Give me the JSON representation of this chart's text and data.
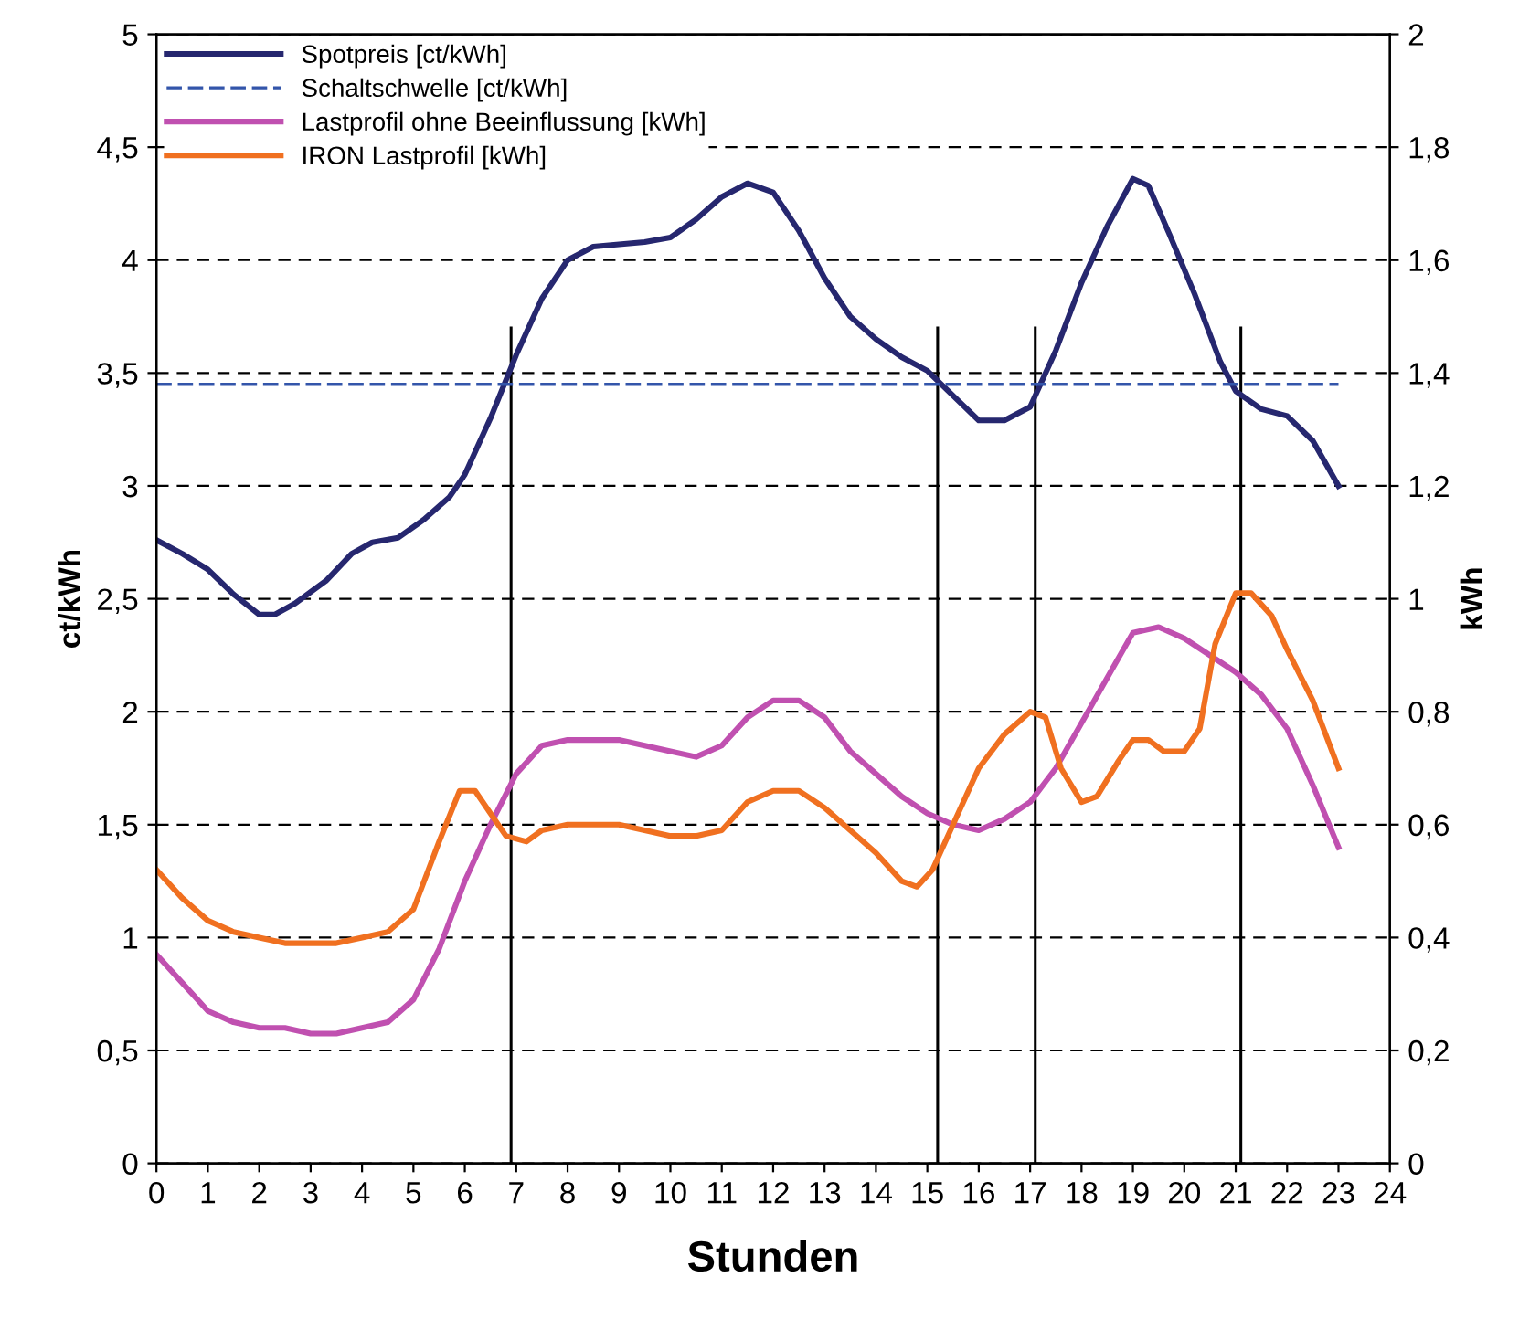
{
  "chart_data": {
    "type": "line",
    "xlabel": "Stunden",
    "ylabel": "ct/kWh",
    "y2label": "kWh",
    "xlim": [
      0,
      24
    ],
    "xticks": [
      0,
      1,
      2,
      3,
      4,
      5,
      6,
      7,
      8,
      9,
      10,
      11,
      12,
      13,
      14,
      15,
      16,
      17,
      18,
      19,
      20,
      21,
      22,
      23,
      24
    ],
    "ylim": [
      0,
      5
    ],
    "yticks": [
      0,
      {
        "value": 0.5,
        "label": "0,5"
      },
      1,
      {
        "value": 1.5,
        "label": "1,5"
      },
      2,
      {
        "value": 2.5,
        "label": "2,5"
      },
      3,
      {
        "value": 3.5,
        "label": "3,5"
      },
      4,
      {
        "value": 4.5,
        "label": "4,5"
      },
      5
    ],
    "y2lim": [
      0,
      2
    ],
    "y2ticks": [
      0,
      {
        "value": 0.2,
        "label": "0,2"
      },
      {
        "value": 0.4,
        "label": "0,4"
      },
      {
        "value": 0.6,
        "label": "0,6"
      },
      {
        "value": 0.8,
        "label": "0,8"
      },
      1,
      {
        "value": 1.2,
        "label": "1,2"
      },
      {
        "value": 1.4,
        "label": "1,4"
      },
      {
        "value": 1.6,
        "label": "1,6"
      },
      {
        "value": 1.8,
        "label": "1,8"
      },
      2
    ],
    "grid": "y",
    "legend": "top left",
    "marker": "none",
    "ref_lines": [
      {
        "axis": "x",
        "value": 6.9,
        "color": "#000000"
      },
      {
        "axis": "x",
        "value": 15.2,
        "color": "#000000"
      },
      {
        "axis": "x",
        "value": 17.1,
        "color": "#000000"
      },
      {
        "axis": "x",
        "value": 21.1,
        "color": "#000000"
      }
    ],
    "series": [
      {
        "name": "Spotpreis [ct/kWh]",
        "color": "#26276f",
        "line_style": "solid",
        "x": [
          0,
          0.5,
          1,
          1.5,
          2,
          2.3,
          2.7,
          3.3,
          3.8,
          4.2,
          4.7,
          5.2,
          5.7,
          6,
          6.5,
          7,
          7.5,
          8,
          8.5,
          9,
          9.5,
          10,
          10.5,
          11,
          11.5,
          12,
          12.5,
          13,
          13.5,
          14,
          14.5,
          15,
          15.5,
          16,
          16.5,
          17,
          17.5,
          18,
          18.5,
          19,
          19.3,
          19.7,
          20.2,
          20.7,
          21,
          21.5,
          22,
          22.5,
          23
        ],
        "values": [
          2.76,
          2.7,
          2.63,
          2.52,
          2.43,
          2.43,
          2.48,
          2.58,
          2.7,
          2.75,
          2.77,
          2.85,
          2.95,
          3.05,
          3.3,
          3.58,
          3.83,
          4.0,
          4.06,
          4.07,
          4.08,
          4.1,
          4.18,
          4.28,
          4.34,
          4.3,
          4.13,
          3.92,
          3.75,
          3.65,
          3.57,
          3.51,
          3.4,
          3.29,
          3.29,
          3.35,
          3.6,
          3.9,
          4.15,
          4.36,
          4.33,
          4.12,
          3.85,
          3.55,
          3.42,
          3.34,
          3.31,
          3.2,
          3.0
        ]
      },
      {
        "name": "Schaltschwelle [ct/kWh]",
        "color": "#3355aa",
        "line_style": "dashed",
        "x": [
          0,
          23
        ],
        "values": [
          3.45,
          3.45
        ]
      },
      {
        "name": "Lastprofil ohne Beeinflussung [kWh]",
        "color": "#c050b0",
        "line_style": "solid",
        "axis": "y2",
        "x": [
          0,
          0.5,
          1,
          1.5,
          2,
          2.5,
          3,
          3.5,
          4,
          4.5,
          5,
          5.5,
          6,
          6.5,
          7,
          7.5,
          8,
          8.5,
          9,
          9.5,
          10,
          10.5,
          11,
          11.5,
          12,
          12.5,
          13,
          13.5,
          14,
          14.5,
          15,
          15.5,
          16,
          16.5,
          17,
          17.5,
          18,
          18.5,
          19,
          19.5,
          20,
          20.5,
          21,
          21.5,
          22,
          22.5,
          23
        ],
        "values": [
          0.37,
          0.32,
          0.27,
          0.25,
          0.24,
          0.24,
          0.23,
          0.23,
          0.24,
          0.25,
          0.29,
          0.38,
          0.5,
          0.6,
          0.69,
          0.74,
          0.75,
          0.75,
          0.75,
          0.74,
          0.73,
          0.72,
          0.74,
          0.79,
          0.82,
          0.82,
          0.79,
          0.73,
          0.69,
          0.65,
          0.62,
          0.6,
          0.59,
          0.61,
          0.64,
          0.7,
          0.78,
          0.86,
          0.94,
          0.95,
          0.93,
          0.9,
          0.87,
          0.83,
          0.77,
          0.67,
          0.56
        ]
      },
      {
        "name": "IRON Lastprofil [kWh]",
        "color": "#f07020",
        "line_style": "solid",
        "axis": "y2",
        "x": [
          0,
          0.5,
          1,
          1.5,
          2,
          2.5,
          3,
          3.5,
          4,
          4.5,
          5,
          5.5,
          5.9,
          6.2,
          6.5,
          6.8,
          7.2,
          7.5,
          8,
          8.5,
          9,
          9.5,
          10,
          10.5,
          11,
          11.5,
          12,
          12.5,
          13,
          13.5,
          14,
          14.5,
          14.8,
          15.1,
          15.5,
          16,
          16.5,
          17,
          17.3,
          17.6,
          18,
          18.3,
          18.7,
          19,
          19.3,
          19.6,
          20,
          20.3,
          20.6,
          21,
          21.3,
          21.7,
          22,
          22.5,
          23
        ],
        "values": [
          0.52,
          0.47,
          0.43,
          0.41,
          0.4,
          0.39,
          0.39,
          0.39,
          0.4,
          0.41,
          0.45,
          0.57,
          0.66,
          0.66,
          0.62,
          0.58,
          0.57,
          0.59,
          0.6,
          0.6,
          0.6,
          0.59,
          0.58,
          0.58,
          0.59,
          0.64,
          0.66,
          0.66,
          0.63,
          0.59,
          0.55,
          0.5,
          0.49,
          0.52,
          0.6,
          0.7,
          0.76,
          0.8,
          0.79,
          0.7,
          0.64,
          0.65,
          0.71,
          0.75,
          0.75,
          0.73,
          0.73,
          0.77,
          0.92,
          1.01,
          1.01,
          0.97,
          0.91,
          0.82,
          0.7
        ]
      }
    ]
  }
}
